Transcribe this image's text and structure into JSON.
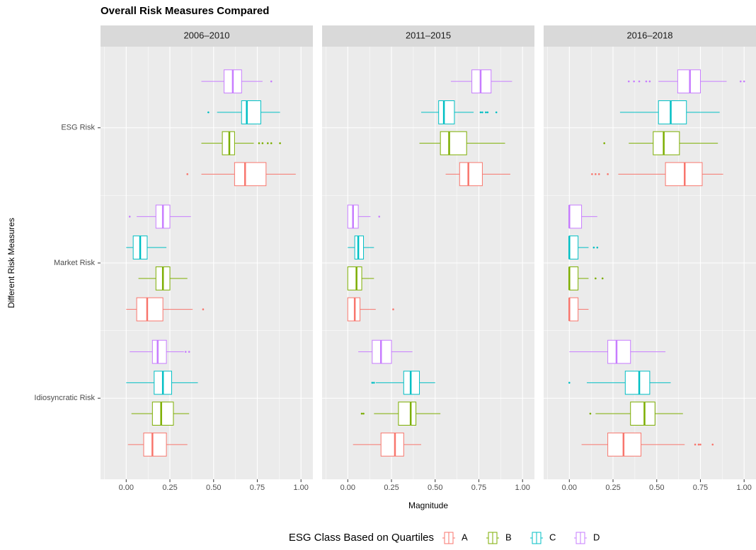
{
  "chart_data": {
    "type": "boxplot",
    "orientation": "horizontal",
    "title": "Overall Risk Measures Compared",
    "x_label": "Magnitude",
    "y_label": "Different Risk Measures",
    "legend_title": "ESG Class Based on Quartiles",
    "legend_position": "bottom",
    "categories": [
      "ESG Risk",
      "Market Risk",
      "Idiosyncratic Risk"
    ],
    "series": [
      {
        "name": "A",
        "color": "#F8766D"
      },
      {
        "name": "B",
        "color": "#7CAE00"
      },
      {
        "name": "C",
        "color": "#00BFC4"
      },
      {
        "name": "D",
        "color": "#C77CFF"
      }
    ],
    "xlim": [
      -0.147,
      1.068
    ],
    "xticks": [
      {
        "value": 0,
        "label": "0.00"
      },
      0.25,
      {
        "value": 0.5,
        "label": "0.50"
      },
      0.75,
      {
        "value": 1,
        "label": "1.00"
      }
    ],
    "grid": true,
    "panels": [
      {
        "title": "2006–2010",
        "data": [
          [
            {
              "low": 0.43,
              "q1": 0.62,
              "median": 0.68,
              "q3": 0.8,
              "high": 0.97,
              "outliers": [
                0.35
              ]
            },
            {
              "low": 0,
              "q1": 0.06,
              "median": 0.12,
              "q3": 0.21,
              "high": 0.38,
              "outliers": [
                0.44
              ]
            },
            {
              "low": 0.01,
              "q1": 0.1,
              "median": 0.15,
              "q3": 0.23,
              "high": 0.35
            }
          ],
          [
            {
              "low": 0.43,
              "q1": 0.55,
              "median": 0.59,
              "q3": 0.62,
              "high": 0.73,
              "outliers": [
                0.76,
                0.78,
                0.81,
                0.83,
                0.88
              ]
            },
            {
              "low": 0.07,
              "q1": 0.17,
              "median": 0.21,
              "q3": 0.25,
              "high": 0.35
            },
            {
              "low": 0.03,
              "q1": 0.15,
              "median": 0.2,
              "q3": 0.27,
              "high": 0.36
            }
          ],
          [
            {
              "low": 0.52,
              "q1": 0.66,
              "median": 0.69,
              "q3": 0.77,
              "high": 0.88,
              "outliers": [
                0.47
              ]
            },
            {
              "low": 0,
              "q1": 0.04,
              "median": 0.08,
              "q3": 0.12,
              "high": 0.23
            },
            {
              "low": 0,
              "q1": 0.16,
              "median": 0.21,
              "q3": 0.26,
              "high": 0.41
            }
          ],
          [
            {
              "low": 0.43,
              "q1": 0.56,
              "median": 0.61,
              "q3": 0.66,
              "high": 0.78,
              "outliers": [
                0.83
              ]
            },
            {
              "low": 0.06,
              "q1": 0.17,
              "median": 0.21,
              "q3": 0.25,
              "high": 0.37,
              "outliers": [
                0.02
              ]
            },
            {
              "low": 0.02,
              "q1": 0.15,
              "median": 0.18,
              "q3": 0.23,
              "high": 0.33,
              "outliers": [
                0.34,
                0.36
              ]
            }
          ]
        ]
      },
      {
        "title": "2011–2015",
        "data": [
          [
            {
              "low": 0.56,
              "q1": 0.64,
              "median": 0.69,
              "q3": 0.77,
              "high": 0.93
            },
            {
              "low": 0,
              "q1": 0,
              "median": 0.04,
              "q3": 0.07,
              "high": 0.16,
              "outliers": [
                0.26
              ]
            },
            {
              "low": 0.03,
              "q1": 0.19,
              "median": 0.27,
              "q3": 0.32,
              "high": 0.42
            }
          ],
          [
            {
              "low": 0.41,
              "q1": 0.53,
              "median": 0.58,
              "q3": 0.68,
              "high": 0.9
            },
            {
              "low": 0,
              "q1": 0,
              "median": 0.05,
              "q3": 0.08,
              "high": 0.15
            },
            {
              "low": 0.15,
              "q1": 0.29,
              "median": 0.36,
              "q3": 0.39,
              "high": 0.53,
              "outliers": [
                0.08,
                0.09
              ]
            }
          ],
          [
            {
              "low": 0.42,
              "q1": 0.52,
              "median": 0.55,
              "q3": 0.61,
              "high": 0.72,
              "outliers": [
                0.76,
                0.77,
                0.79,
                0.8,
                0.85
              ]
            },
            {
              "low": 0,
              "q1": 0.04,
              "median": 0.06,
              "q3": 0.09,
              "high": 0.15
            },
            {
              "low": 0.16,
              "q1": 0.32,
              "median": 0.36,
              "q3": 0.41,
              "high": 0.5,
              "outliers": [
                0.14,
                0.15
              ]
            }
          ],
          [
            {
              "low": 0.59,
              "q1": 0.71,
              "median": 0.76,
              "q3": 0.82,
              "high": 0.94
            },
            {
              "low": 0,
              "q1": 0,
              "median": 0.03,
              "q3": 0.06,
              "high": 0.13,
              "outliers": [
                0.18
              ]
            },
            {
              "low": 0.06,
              "q1": 0.14,
              "median": 0.19,
              "q3": 0.25,
              "high": 0.37
            }
          ]
        ]
      },
      {
        "title": "2016–2018",
        "data": [
          [
            {
              "low": 0.28,
              "q1": 0.55,
              "median": 0.66,
              "q3": 0.76,
              "high": 0.88,
              "outliers": [
                0.13,
                0.15,
                0.17,
                0.22
              ]
            },
            {
              "low": 0,
              "q1": 0,
              "median": 0,
              "q3": 0.05,
              "high": 0.11
            },
            {
              "low": 0.07,
              "q1": 0.22,
              "median": 0.31,
              "q3": 0.41,
              "high": 0.66,
              "outliers": [
                0.72,
                0.74,
                0.75,
                0.82
              ]
            }
          ],
          [
            {
              "low": 0.34,
              "q1": 0.48,
              "median": 0.54,
              "q3": 0.63,
              "high": 0.85,
              "outliers": [
                0.2
              ]
            },
            {
              "low": 0,
              "q1": 0,
              "median": 0,
              "q3": 0.05,
              "high": 0.11,
              "outliers": [
                0.15,
                0.19
              ]
            },
            {
              "low": 0.15,
              "q1": 0.35,
              "median": 0.43,
              "q3": 0.49,
              "high": 0.65,
              "outliers": [
                0.12
              ]
            }
          ],
          [
            {
              "low": 0.29,
              "q1": 0.51,
              "median": 0.58,
              "q3": 0.67,
              "high": 0.86
            },
            {
              "low": 0,
              "q1": 0,
              "median": 0,
              "q3": 0.05,
              "high": 0.11,
              "outliers": [
                0.14,
                0.16
              ]
            },
            {
              "low": 0.1,
              "q1": 0.32,
              "median": 0.4,
              "q3": 0.46,
              "high": 0.58,
              "outliers": [
                0
              ]
            }
          ],
          [
            {
              "low": 0.51,
              "q1": 0.62,
              "median": 0.69,
              "q3": 0.75,
              "high": 0.9,
              "outliers": [
                0.34,
                0.37,
                0.4,
                0.44,
                0.46,
                0.98,
                1.0
              ]
            },
            {
              "low": 0,
              "q1": 0,
              "median": 0,
              "q3": 0.07,
              "high": 0.16
            },
            {
              "low": 0,
              "q1": 0.22,
              "median": 0.27,
              "q3": 0.35,
              "high": 0.55
            }
          ]
        ]
      }
    ]
  }
}
